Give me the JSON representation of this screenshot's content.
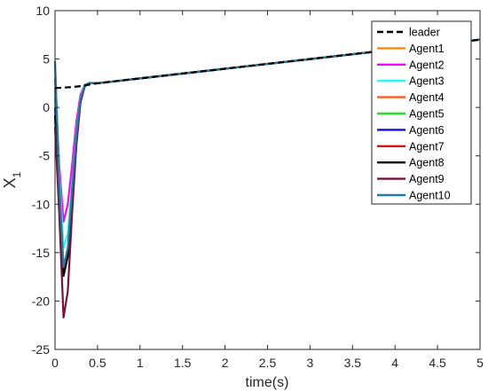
{
  "chart_data": {
    "type": "line",
    "xlabel": "time(s)",
    "ylabel_main": "X",
    "ylabel_sub": "1",
    "xlim": [
      0,
      5
    ],
    "ylim": [
      -25,
      10
    ],
    "xticks": [
      0,
      0.5,
      1,
      1.5,
      2,
      2.5,
      3,
      3.5,
      4,
      4.5,
      5
    ],
    "xtick_labels": [
      "0",
      "0.5",
      "1",
      "1.5",
      "2",
      "2.5",
      "3",
      "3.5",
      "4",
      "4.5",
      "5"
    ],
    "yticks": [
      -25,
      -20,
      -15,
      -10,
      -5,
      0,
      5,
      10
    ],
    "ytick_labels": [
      "-25",
      "-20",
      "-15",
      "-10",
      "-5",
      "0",
      "5",
      "10"
    ],
    "grid": false,
    "legend_position": "top-right",
    "series": [
      {
        "name": "leader",
        "color": "#000000",
        "dashed": true,
        "x": [
          0,
          0.1,
          0.2,
          0.3,
          0.4,
          0.5,
          1,
          1.5,
          2,
          2.5,
          3,
          3.5,
          4,
          4.5,
          5
        ],
        "y": [
          2.0,
          2.05,
          2.1,
          2.2,
          2.35,
          2.5,
          3.0,
          3.5,
          4.0,
          4.5,
          5.0,
          5.5,
          6.0,
          6.5,
          7.0
        ]
      },
      {
        "name": "Agent1",
        "color": "#ff8c00",
        "x": [
          0,
          0.05,
          0.1,
          0.15,
          0.2,
          0.25,
          0.3,
          0.35,
          0.4,
          0.5,
          1,
          2,
          3,
          4,
          5
        ],
        "y": [
          4.5,
          -8.0,
          -16.8,
          -15.0,
          -9.0,
          -3.0,
          1.0,
          2.3,
          2.5,
          2.5,
          3.0,
          4.0,
          5.0,
          6.0,
          7.0
        ]
      },
      {
        "name": "Agent2",
        "color": "#ff00ff",
        "x": [
          0,
          0.05,
          0.1,
          0.15,
          0.2,
          0.25,
          0.3,
          0.35,
          0.4,
          0.5,
          1,
          2,
          3,
          4,
          5
        ],
        "y": [
          3.0,
          -6.0,
          -11.8,
          -10.0,
          -6.0,
          -1.5,
          1.3,
          2.3,
          2.5,
          2.5,
          3.0,
          4.0,
          5.0,
          6.0,
          7.0
        ]
      },
      {
        "name": "Agent3",
        "color": "#33f2f2",
        "x": [
          0,
          0.05,
          0.1,
          0.15,
          0.2,
          0.25,
          0.3,
          0.35,
          0.4,
          0.5,
          1,
          2,
          3,
          4,
          5
        ],
        "y": [
          4.0,
          -7.0,
          -14.5,
          -13.0,
          -8.0,
          -2.5,
          1.0,
          2.3,
          2.5,
          2.5,
          3.0,
          4.0,
          5.0,
          6.0,
          7.0
        ]
      },
      {
        "name": "Agent4",
        "color": "#ff5a1a",
        "x": [
          0,
          0.05,
          0.1,
          0.15,
          0.2,
          0.25,
          0.3,
          0.35,
          0.4,
          0.5,
          1,
          2,
          3,
          4,
          5
        ],
        "y": [
          2.0,
          -8.0,
          -17.0,
          -15.0,
          -9.0,
          -3.0,
          0.8,
          2.2,
          2.5,
          2.5,
          3.0,
          4.0,
          5.0,
          6.0,
          7.0
        ]
      },
      {
        "name": "Agent5",
        "color": "#22e022",
        "x": [
          0,
          0.05,
          0.1,
          0.15,
          0.2,
          0.25,
          0.3,
          0.35,
          0.4,
          0.5,
          1,
          2,
          3,
          4,
          5
        ],
        "y": [
          1.0,
          -8.0,
          -17.0,
          -15.0,
          -9.0,
          -3.0,
          0.8,
          2.2,
          2.5,
          2.5,
          3.0,
          4.0,
          5.0,
          6.0,
          7.0
        ]
      },
      {
        "name": "Agent6",
        "color": "#1010d0",
        "x": [
          0,
          0.05,
          0.1,
          0.15,
          0.2,
          0.25,
          0.3,
          0.35,
          0.4,
          0.5,
          1,
          2,
          3,
          4,
          5
        ],
        "y": [
          0.0,
          -8.5,
          -17.2,
          -15.2,
          -9.2,
          -3.2,
          0.7,
          2.2,
          2.5,
          2.5,
          3.0,
          4.0,
          5.0,
          6.0,
          7.0
        ]
      },
      {
        "name": "Agent7",
        "color": "#e01010",
        "x": [
          0,
          0.05,
          0.1,
          0.15,
          0.2,
          0.25,
          0.3,
          0.35,
          0.4,
          0.5,
          1,
          2,
          3,
          4,
          5
        ],
        "y": [
          -1.0,
          -9.0,
          -17.3,
          -15.3,
          -9.3,
          -3.3,
          0.6,
          2.2,
          2.5,
          2.5,
          3.0,
          4.0,
          5.0,
          6.0,
          7.0
        ]
      },
      {
        "name": "Agent8",
        "color": "#000000",
        "x": [
          0,
          0.05,
          0.1,
          0.15,
          0.2,
          0.25,
          0.3,
          0.35,
          0.4,
          0.5,
          1,
          2,
          3,
          4,
          5
        ],
        "y": [
          -0.8,
          -9.0,
          -17.4,
          -15.4,
          -9.4,
          -3.4,
          0.6,
          2.2,
          2.5,
          2.5,
          3.0,
          4.0,
          5.0,
          6.0,
          7.0
        ]
      },
      {
        "name": "Agent9",
        "color": "#7a1040",
        "x": [
          0,
          0.05,
          0.1,
          0.15,
          0.2,
          0.25,
          0.3,
          0.35,
          0.4,
          0.5,
          1,
          2,
          3,
          4,
          5
        ],
        "y": [
          -2.0,
          -11.0,
          -21.7,
          -19.0,
          -11.0,
          -4.0,
          0.5,
          2.2,
          2.5,
          2.5,
          3.0,
          4.0,
          5.0,
          6.0,
          7.0
        ]
      },
      {
        "name": "Agent10",
        "color": "#1a7fa0",
        "x": [
          0,
          0.05,
          0.1,
          0.15,
          0.2,
          0.25,
          0.3,
          0.35,
          0.4,
          0.5,
          1,
          2,
          3,
          4,
          5
        ],
        "y": [
          4.8,
          -8.0,
          -16.5,
          -14.5,
          -8.5,
          -2.8,
          0.9,
          2.3,
          2.5,
          2.5,
          3.0,
          4.0,
          5.0,
          6.0,
          7.0
        ]
      }
    ]
  }
}
